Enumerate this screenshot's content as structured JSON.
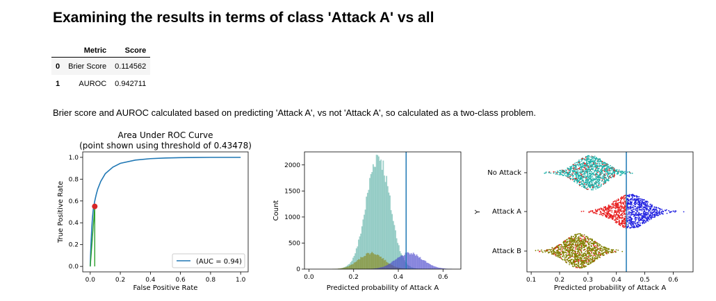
{
  "page": {
    "title": "Examining the results in terms of class 'Attack A' vs all",
    "description": "Brier score and AUROC calculated based on predicting 'Attack A', vs not 'Attack A', so calculated as a two-class problem."
  },
  "table": {
    "headers": [
      "",
      "Metric",
      "Score"
    ],
    "rows": [
      {
        "index": "0",
        "metric": "Brier Score",
        "score": "0.114562"
      },
      {
        "index": "1",
        "metric": "AUROC",
        "score": "0.942711"
      }
    ]
  },
  "chart_data": [
    {
      "type": "line",
      "title": "Area Under ROC Curve",
      "subtitle": "(point shown using threshold of 0.43478)",
      "xlabel": "False Positive Rate",
      "ylabel": "True Positive Rate",
      "xlim": [
        -0.05,
        1.05
      ],
      "ylim": [
        -0.05,
        1.05
      ],
      "xticks": [
        "0.0",
        "0.2",
        "0.4",
        "0.6",
        "0.8",
        "1.0"
      ],
      "yticks": [
        "0.0",
        "0.2",
        "0.4",
        "0.6",
        "0.8",
        "1.0"
      ],
      "legend": "(AUC = 0.94)",
      "legend_position": "lower-right",
      "series": [
        {
          "name": "(AUC = 0.94)",
          "color": "#1f77b4",
          "x": [
            0,
            0.002,
            0.005,
            0.01,
            0.015,
            0.02,
            0.03,
            0.04,
            0.05,
            0.07,
            0.1,
            0.15,
            0.2,
            0.3,
            0.4,
            0.5,
            0.6,
            0.7,
            0.8,
            1.0
          ],
          "y": [
            0,
            0.1,
            0.2,
            0.35,
            0.45,
            0.52,
            0.6,
            0.66,
            0.71,
            0.78,
            0.85,
            0.91,
            0.945,
            0.975,
            0.988,
            0.994,
            0.997,
            0.999,
            1.0,
            1.0
          ]
        }
      ],
      "threshold_point": {
        "x": 0.03,
        "y": 0.55,
        "color": "#d62728"
      },
      "threshold_lines_color": "#2ca02c"
    },
    {
      "type": "histogram",
      "title": "",
      "xlabel": "Predicted probability of Attack A",
      "ylabel": "Count",
      "xlim": [
        -0.02,
        0.68
      ],
      "ylim": [
        0,
        2250
      ],
      "xticks": [
        "0.0",
        "0.2",
        "0.4",
        "0.6"
      ],
      "yticks": [
        "0",
        "500",
        "1000",
        "1500",
        "2000"
      ],
      "threshold": 0.435,
      "series": [
        {
          "name": "No Attack",
          "color": "#5fb3a8",
          "mean": 0.31,
          "sd": 0.052,
          "peak": 2180
        },
        {
          "name": "Attack B",
          "color": "#8a8a1e",
          "mean": 0.28,
          "sd": 0.055,
          "peak": 310
        },
        {
          "name": "Attack A",
          "color": "#4a46cc",
          "mean": 0.45,
          "sd": 0.06,
          "peak": 300
        }
      ]
    },
    {
      "type": "scatter",
      "title": "",
      "xlabel": "Predicted probability of Attack A",
      "ylabel": "Y",
      "xlim": [
        0.085,
        0.67
      ],
      "xticks": [
        "0.1",
        "0.2",
        "0.3",
        "0.4",
        "0.5",
        "0.6"
      ],
      "categories": [
        "No Attack",
        "Attack A",
        "Attack B"
      ],
      "threshold": 0.435,
      "series": [
        {
          "name": "No Attack",
          "color": "#20b2aa",
          "mean": 0.31,
          "sd": 0.05,
          "min": 0.12,
          "max": 0.55
        },
        {
          "name": "Attack A",
          "color": "#e81e1e",
          "above_color": "#2020e0",
          "mean": 0.45,
          "sd": 0.055,
          "min": 0.25,
          "max": 0.64
        },
        {
          "name": "Attack B",
          "color": "#808000",
          "mean": 0.27,
          "sd": 0.05,
          "min": 0.1,
          "max": 0.46
        }
      ]
    }
  ]
}
